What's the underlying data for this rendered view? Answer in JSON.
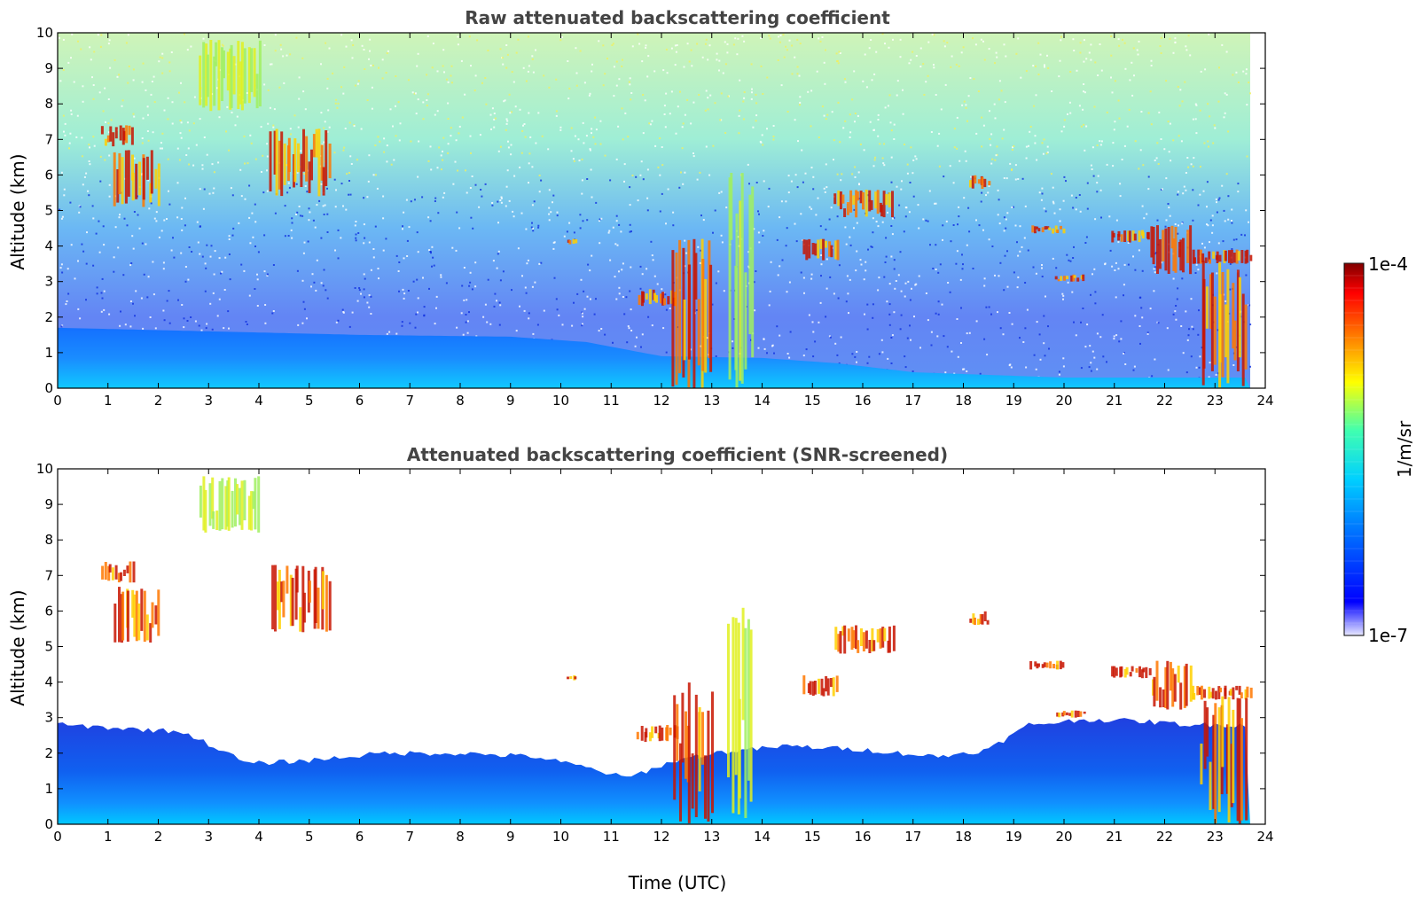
{
  "chart_data": [
    {
      "type": "heatmap",
      "title": "Raw attenuated backscattering coefficient",
      "xlabel": "",
      "ylabel": "Altitude (km)",
      "xlim": [
        0,
        24
      ],
      "ylim": [
        0,
        10
      ],
      "xticks": [
        0,
        1,
        2,
        3,
        4,
        5,
        6,
        7,
        8,
        9,
        10,
        11,
        12,
        13,
        14,
        15,
        16,
        17,
        18,
        19,
        20,
        21,
        22,
        23,
        24
      ],
      "yticks": [
        0,
        1,
        2,
        3,
        4,
        5,
        6,
        7,
        8,
        9,
        10
      ],
      "screened": false,
      "boundary_layer_top_km": [
        [
          0,
          1.7
        ],
        [
          3,
          1.6
        ],
        [
          6,
          1.5
        ],
        [
          9,
          1.45
        ],
        [
          10.5,
          1.3
        ],
        [
          12,
          0.9
        ],
        [
          14,
          0.85
        ],
        [
          15.5,
          0.7
        ],
        [
          17,
          0.45
        ],
        [
          19,
          0.35
        ],
        [
          20,
          0.3
        ],
        [
          22,
          0.3
        ],
        [
          23.7,
          0.3
        ]
      ],
      "cloud_features": [
        {
          "x": [
            0.85,
            1.5
          ],
          "y": [
            6.8,
            7.4
          ],
          "intensity": "high"
        },
        {
          "x": [
            1.1,
            2.0
          ],
          "y": [
            5.1,
            6.7
          ],
          "intensity": "high"
        },
        {
          "x": [
            2.8,
            4.0
          ],
          "y": [
            7.8,
            9.8
          ],
          "intensity": "medium"
        },
        {
          "x": [
            4.2,
            5.4
          ],
          "y": [
            5.4,
            7.3
          ],
          "intensity": "high"
        },
        {
          "x": [
            10.1,
            10.3
          ],
          "y": [
            4.05,
            4.2
          ],
          "intensity": "high"
        },
        {
          "x": [
            11.5,
            12.3
          ],
          "y": [
            2.3,
            2.8
          ],
          "intensity": "high"
        },
        {
          "x": [
            12.2,
            13.0
          ],
          "y": [
            0.0,
            4.2
          ],
          "intensity": "high"
        },
        {
          "x": [
            13.3,
            13.8
          ],
          "y": [
            0.0,
            6.1
          ],
          "intensity": "medium"
        },
        {
          "x": [
            14.8,
            15.5
          ],
          "y": [
            3.6,
            4.2
          ],
          "intensity": "high"
        },
        {
          "x": [
            15.4,
            16.6
          ],
          "y": [
            4.8,
            5.6
          ],
          "intensity": "high"
        },
        {
          "x": [
            18.1,
            18.5
          ],
          "y": [
            5.6,
            6.0
          ],
          "intensity": "high"
        },
        {
          "x": [
            19.3,
            20.0
          ],
          "y": [
            4.35,
            4.6
          ],
          "intensity": "high"
        },
        {
          "x": [
            19.8,
            20.4
          ],
          "y": [
            3.0,
            3.2
          ],
          "intensity": "high"
        },
        {
          "x": [
            20.9,
            21.7
          ],
          "y": [
            4.1,
            4.45
          ],
          "intensity": "high"
        },
        {
          "x": [
            21.7,
            22.5
          ],
          "y": [
            3.2,
            4.6
          ],
          "intensity": "high"
        },
        {
          "x": [
            22.5,
            23.7
          ],
          "y": [
            3.5,
            3.9
          ],
          "intensity": "high"
        },
        {
          "x": [
            22.7,
            23.6
          ],
          "y": [
            0.0,
            3.6
          ],
          "intensity": "high"
        }
      ]
    },
    {
      "type": "heatmap",
      "title": "Attenuated backscattering coefficient (SNR-screened)",
      "xlabel": "Time (UTC)",
      "ylabel": "Altitude (km)",
      "xlim": [
        0,
        24
      ],
      "ylim": [
        0,
        10
      ],
      "xticks": [
        0,
        1,
        2,
        3,
        4,
        5,
        6,
        7,
        8,
        9,
        10,
        11,
        12,
        13,
        14,
        15,
        16,
        17,
        18,
        19,
        20,
        21,
        22,
        23,
        24
      ],
      "yticks": [
        0,
        1,
        2,
        3,
        4,
        5,
        6,
        7,
        8,
        9,
        10
      ],
      "screened": true,
      "signal_top_km": [
        [
          0,
          2.8
        ],
        [
          2.5,
          2.6
        ],
        [
          3.8,
          1.7
        ],
        [
          5,
          1.8
        ],
        [
          6.5,
          2.0
        ],
        [
          8,
          2.0
        ],
        [
          9.5,
          1.9
        ],
        [
          10.5,
          1.6
        ],
        [
          11.3,
          1.3
        ],
        [
          12.3,
          1.8
        ],
        [
          13,
          2.0
        ],
        [
          14.5,
          2.2
        ],
        [
          16,
          2.1
        ],
        [
          17.5,
          1.9
        ],
        [
          18.5,
          2.1
        ],
        [
          19.3,
          2.8
        ],
        [
          20.5,
          2.95
        ],
        [
          21.5,
          2.9
        ],
        [
          22.5,
          2.8
        ],
        [
          23.7,
          2.8
        ]
      ],
      "cloud_features": [
        {
          "x": [
            0.85,
            1.5
          ],
          "y": [
            6.8,
            7.4
          ],
          "intensity": "high"
        },
        {
          "x": [
            1.1,
            2.0
          ],
          "y": [
            5.1,
            6.7
          ],
          "intensity": "high"
        },
        {
          "x": [
            2.8,
            4.0
          ],
          "y": [
            8.2,
            9.8
          ],
          "intensity": "medium"
        },
        {
          "x": [
            4.2,
            5.4
          ],
          "y": [
            5.4,
            7.3
          ],
          "intensity": "high"
        },
        {
          "x": [
            10.1,
            10.3
          ],
          "y": [
            4.05,
            4.2
          ],
          "intensity": "high"
        },
        {
          "x": [
            11.5,
            12.3
          ],
          "y": [
            2.3,
            2.8
          ],
          "intensity": "high"
        },
        {
          "x": [
            12.2,
            13.0
          ],
          "y": [
            0.0,
            4.2
          ],
          "intensity": "high"
        },
        {
          "x": [
            13.3,
            13.8
          ],
          "y": [
            0.0,
            6.1
          ],
          "intensity": "medium"
        },
        {
          "x": [
            14.8,
            15.5
          ],
          "y": [
            3.6,
            4.2
          ],
          "intensity": "high"
        },
        {
          "x": [
            15.4,
            16.6
          ],
          "y": [
            4.8,
            5.6
          ],
          "intensity": "high"
        },
        {
          "x": [
            18.1,
            18.5
          ],
          "y": [
            5.6,
            6.0
          ],
          "intensity": "high"
        },
        {
          "x": [
            19.3,
            20.0
          ],
          "y": [
            4.35,
            4.6
          ],
          "intensity": "high"
        },
        {
          "x": [
            19.8,
            20.4
          ],
          "y": [
            3.0,
            3.2
          ],
          "intensity": "high"
        },
        {
          "x": [
            20.9,
            21.7
          ],
          "y": [
            4.1,
            4.45
          ],
          "intensity": "high"
        },
        {
          "x": [
            21.7,
            22.5
          ],
          "y": [
            3.2,
            4.6
          ],
          "intensity": "high"
        },
        {
          "x": [
            22.5,
            23.7
          ],
          "y": [
            3.5,
            3.9
          ],
          "intensity": "high"
        },
        {
          "x": [
            22.7,
            23.6
          ],
          "y": [
            0.0,
            3.6
          ],
          "intensity": "high"
        }
      ]
    }
  ],
  "colorbar": {
    "label": "1/m/sr",
    "max_label": "1e-4",
    "min_label": "1e-7",
    "colormap": [
      "#ffffff",
      "#0000ff",
      "#0080ff",
      "#00d0ff",
      "#40ffb0",
      "#c0ff40",
      "#ffff00",
      "#ff8000",
      "#ff0000",
      "#800000"
    ]
  }
}
